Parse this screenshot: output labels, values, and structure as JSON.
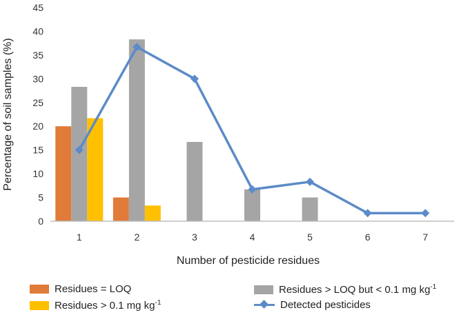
{
  "chart_data": {
    "type": "bar",
    "xlabel": "Number of pesticide residues",
    "ylabel": "Percentage of soil samples  (%)",
    "categories": [
      "1",
      "2",
      "3",
      "4",
      "5",
      "6",
      "7"
    ],
    "ylim": [
      0,
      45
    ],
    "yticks": [
      0,
      5,
      10,
      15,
      20,
      25,
      30,
      35,
      40,
      45
    ],
    "grid": false,
    "series": [
      {
        "name": "Residues = LOQ",
        "kind": "bar",
        "color": "#E07B39",
        "values": [
          20,
          5,
          0,
          0,
          0,
          0,
          0
        ]
      },
      {
        "name": "Residues > LOQ but < 0.1 mg kg",
        "unit_sup": "-1",
        "kind": "bar",
        "color": "#A5A5A5",
        "values": [
          28.3,
          38.3,
          16.7,
          6.7,
          5.0,
          0,
          0
        ]
      },
      {
        "name": "Residues  > 0.1 mg kg",
        "unit_sup": "-1",
        "kind": "bar",
        "color": "#FFC000",
        "values": [
          21.7,
          3.3,
          0,
          0,
          0,
          0,
          0
        ]
      },
      {
        "name": "Detected pesticides",
        "kind": "line",
        "color": "#5B8BC8",
        "values": [
          15,
          36.7,
          30,
          6.7,
          8.3,
          1.7,
          1.7
        ]
      }
    ],
    "legend_position": "bottom"
  }
}
